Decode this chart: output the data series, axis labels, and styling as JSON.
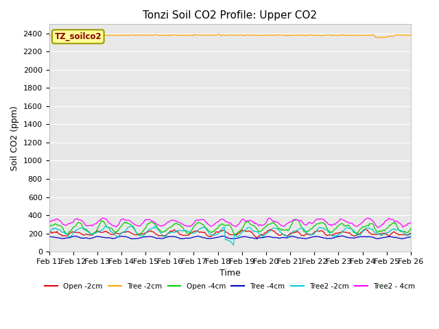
{
  "title": "Tonzi Soil CO2 Profile: Upper CO2",
  "xlabel": "Time",
  "ylabel": "Soil CO2 (ppm)",
  "ylim": [
    0,
    2500
  ],
  "yticks": [
    0,
    200,
    400,
    600,
    800,
    1000,
    1200,
    1400,
    1600,
    1800,
    2000,
    2200,
    2400
  ],
  "x_labels": [
    "Feb 11",
    "Feb 12",
    "Feb 13",
    "Feb 14",
    "Feb 15",
    "Feb 16",
    "Feb 17",
    "Feb 18",
    "Feb 19",
    "Feb 20",
    "Feb 21",
    "Feb 22",
    "Feb 23",
    "Feb 24",
    "Feb 25",
    "Feb 26"
  ],
  "legend_label": "TZ_soilco2",
  "legend_label_color": "#8B0000",
  "legend_box_facecolor": "#FFFF99",
  "legend_box_edgecolor": "#999900",
  "series_order": [
    "Open_2cm",
    "Tree_2cm",
    "Open_4cm",
    "Tree_4cm",
    "Tree2_2cm",
    "Tree2_4cm"
  ],
  "series": {
    "Open_2cm": {
      "color": "#DD0000",
      "label": "Open -2cm"
    },
    "Tree_2cm": {
      "color": "#FFA500",
      "label": "Tree -2cm"
    },
    "Open_4cm": {
      "color": "#00CC00",
      "label": "Open -4cm"
    },
    "Tree_4cm": {
      "color": "#0000CC",
      "label": "Tree -4cm"
    },
    "Tree2_2cm": {
      "color": "#00CCCC",
      "label": "Tree2 -2cm"
    },
    "Tree2_4cm": {
      "color": "#FF00FF",
      "label": "Tree2 - 4cm"
    }
  },
  "bg_color": "#E8E8E8",
  "title_fontsize": 11,
  "axis_label_fontsize": 9,
  "tick_fontsize": 8
}
